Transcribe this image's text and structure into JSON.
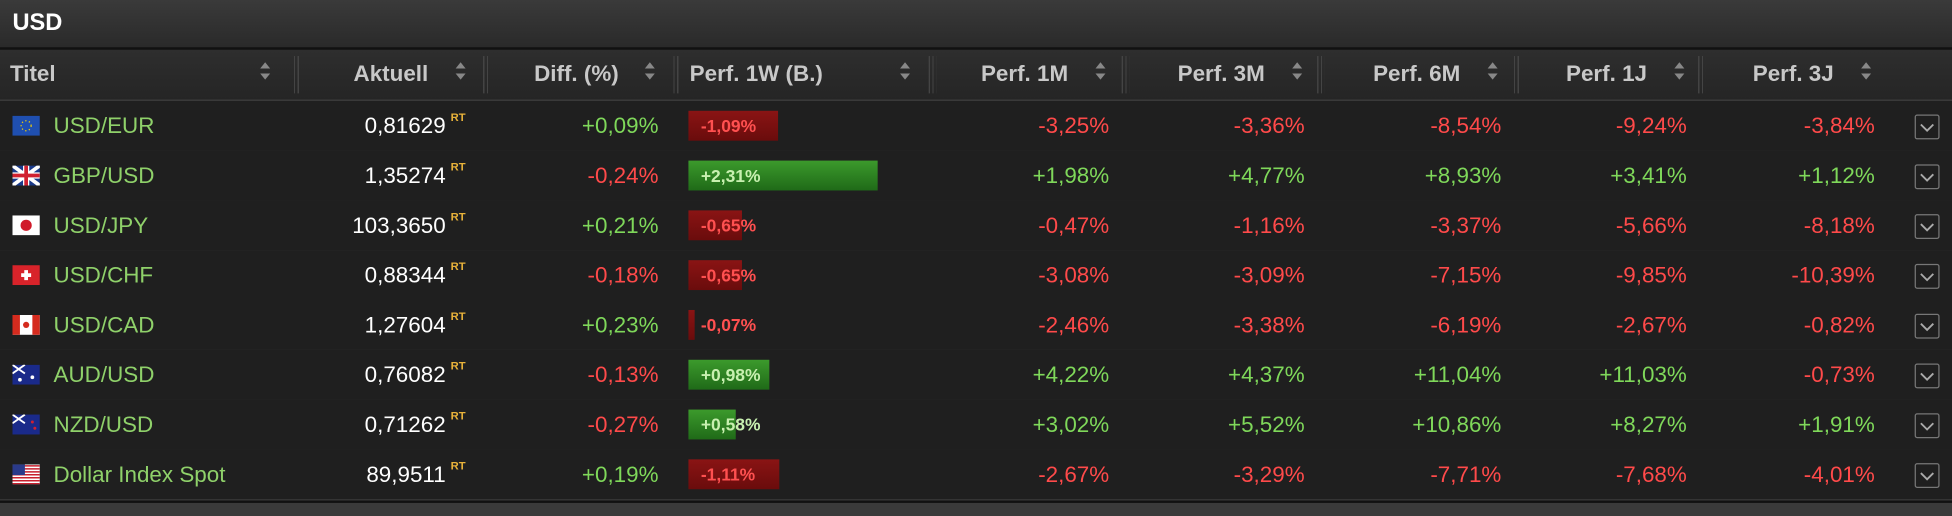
{
  "header": {
    "title": "USD"
  },
  "table": {
    "columns": [
      "Titel",
      "Aktuell",
      "Diff. (%)",
      "Perf. 1W (B.)",
      "Perf. 1M",
      "Perf. 3M",
      "Perf. 6M",
      "Perf. 1J",
      "Perf. 3J"
    ],
    "badge": "RT",
    "rows": [
      [
        "USD/EUR",
        "0,81629",
        "+0,09%",
        "-1,09%",
        "-3,25%",
        "-3,36%",
        "-8,54%",
        "-9,24%",
        "-3,84%"
      ],
      [
        "GBP/USD",
        "1,35274",
        "-0,24%",
        "+2,31%",
        "+1,98%",
        "+4,77%",
        "+8,93%",
        "+3,41%",
        "+1,12%"
      ],
      [
        "USD/JPY",
        "103,3650",
        "+0,21%",
        "-0,65%",
        "-0,47%",
        "-1,16%",
        "-3,37%",
        "-5,66%",
        "-8,18%"
      ],
      [
        "USD/CHF",
        "0,88344",
        "-0,18%",
        "-0,65%",
        "-3,08%",
        "-3,09%",
        "-7,15%",
        "-9,85%",
        "-10,39%"
      ],
      [
        "USD/CAD",
        "1,27604",
        "+0,23%",
        "-0,07%",
        "-2,46%",
        "-3,38%",
        "-6,19%",
        "-2,67%",
        "-0,82%"
      ],
      [
        "AUD/USD",
        "0,76082",
        "-0,13%",
        "+0,98%",
        "+4,22%",
        "+4,37%",
        "+11,04%",
        "+11,03%",
        "-0,73%"
      ],
      [
        "NZD/USD",
        "0,71262",
        "-0,27%",
        "+0,58%",
        "+3,02%",
        "+5,52%",
        "+10,86%",
        "+8,27%",
        "+1,91%"
      ],
      [
        "Dollar Index Spot",
        "89,9511",
        "+0,19%",
        "-1,11%",
        "-2,67%",
        "-3,29%",
        "-7,71%",
        "-7,68%",
        "-4,01%"
      ]
    ]
  }
}
